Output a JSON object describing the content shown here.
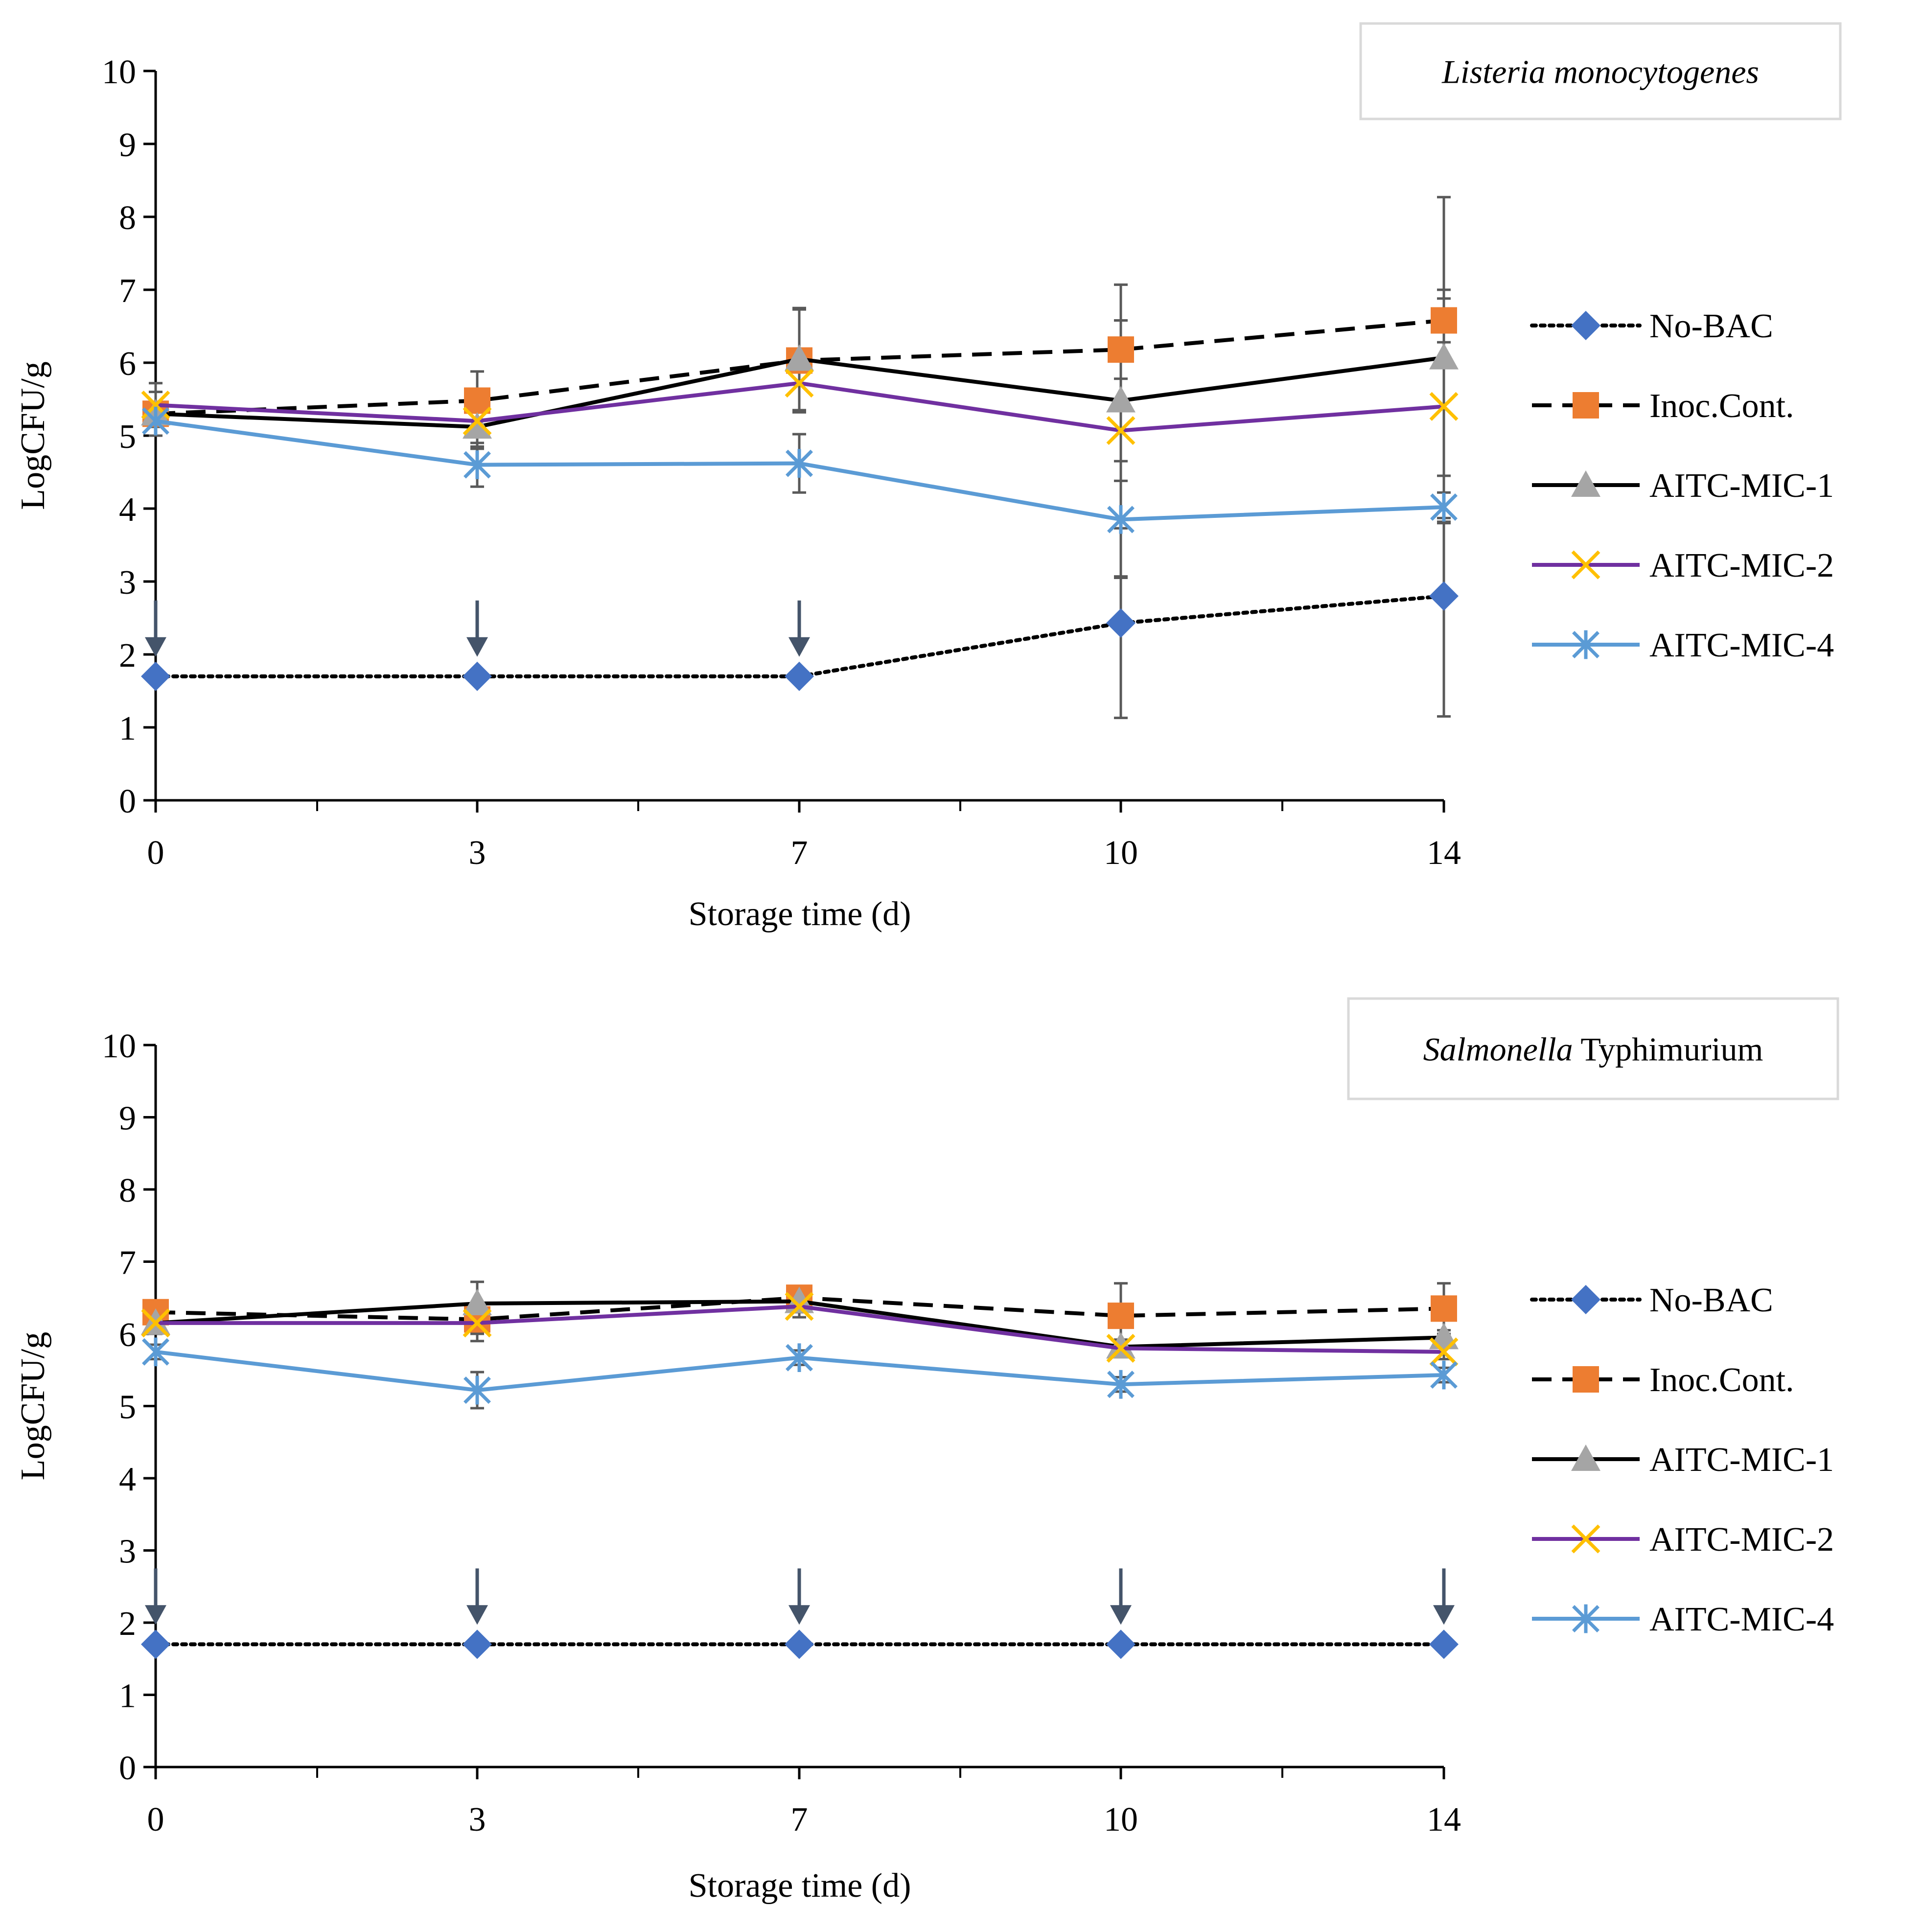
{
  "chart_data": [
    {
      "type": "line",
      "title": "Listeria monocytogenes",
      "title_parts": [
        {
          "text": "Listeria monocytogenes",
          "italic": true
        }
      ],
      "xlabel": "Storage time (d)",
      "ylabel": "LogCFU/g",
      "ylim": [
        0,
        10
      ],
      "yticks": [
        "0",
        "1",
        "2",
        "3",
        "4",
        "5",
        "6",
        "7",
        "8",
        "9",
        "10"
      ],
      "categories": [
        "0",
        "3",
        "7",
        "10",
        "14"
      ],
      "legend_position": "right",
      "series": [
        {
          "name": "No-BAC",
          "key": "nobac",
          "values": [
            1.7,
            1.7,
            1.7,
            2.43,
            2.8
          ],
          "errors": [
            null,
            null,
            null,
            1.3,
            1.65
          ],
          "below_detection": [
            true,
            true,
            true,
            false,
            false
          ]
        },
        {
          "name": "Inoc.Cont.",
          "key": "inoc",
          "values": [
            5.3,
            5.48,
            6.03,
            6.18,
            6.58
          ],
          "errors": [
            0.15,
            0.4,
            0.7,
            0.4,
            0.3
          ],
          "below_detection": [
            false,
            false,
            false,
            false,
            false
          ]
        },
        {
          "name": "AITC-MIC-1",
          "key": "mic1",
          "values": [
            5.3,
            5.12,
            6.05,
            5.48,
            6.07
          ],
          "errors": [
            0.3,
            0.3,
            0.7,
            1.1,
            2.2
          ],
          "below_detection": [
            false,
            false,
            false,
            false,
            false
          ]
        },
        {
          "name": "AITC-MIC-2",
          "key": "mic2",
          "values": [
            5.42,
            5.2,
            5.72,
            5.07,
            5.4
          ],
          "errors": [
            0.3,
            0.35,
            0.4,
            2.0,
            1.6
          ],
          "below_detection": [
            false,
            false,
            false,
            false,
            false
          ]
        },
        {
          "name": "AITC-MIC-4",
          "key": "mic4",
          "values": [
            5.2,
            4.6,
            4.62,
            3.85,
            4.02
          ],
          "errors": [
            0.2,
            0.3,
            0.4,
            0.8,
            0.2
          ],
          "below_detection": [
            false,
            false,
            false,
            false,
            false
          ]
        }
      ]
    },
    {
      "type": "line",
      "title": "Salmonella Typhimurium",
      "title_parts": [
        {
          "text": "Salmonella",
          "italic": true
        },
        {
          "text": " Typhimurium",
          "italic": false
        }
      ],
      "xlabel": "Storage time (d)",
      "ylabel": "LogCFU/g",
      "ylim": [
        0,
        10
      ],
      "yticks": [
        "0",
        "1",
        "2",
        "3",
        "4",
        "5",
        "6",
        "7",
        "8",
        "9",
        "10"
      ],
      "categories": [
        "0",
        "3",
        "7",
        "10",
        "14"
      ],
      "legend_position": "right",
      "series": [
        {
          "name": "No-BAC",
          "key": "nobac",
          "values": [
            1.7,
            1.7,
            1.7,
            1.7,
            1.7
          ],
          "errors": [
            null,
            null,
            null,
            null,
            null
          ],
          "below_detection": [
            true,
            true,
            true,
            true,
            true
          ]
        },
        {
          "name": "Inoc.Cont.",
          "key": "inoc",
          "values": [
            6.3,
            6.2,
            6.5,
            6.25,
            6.35
          ],
          "errors": [
            0.15,
            0.2,
            0.15,
            0.45,
            0.35
          ],
          "below_detection": [
            false,
            false,
            false,
            false,
            false
          ]
        },
        {
          "name": "AITC-MIC-1",
          "key": "mic1",
          "values": [
            6.15,
            6.42,
            6.45,
            5.82,
            5.95
          ],
          "errors": [
            0.15,
            0.3,
            0.15,
            0.1,
            0.1
          ],
          "below_detection": [
            false,
            false,
            false,
            false,
            false
          ]
        },
        {
          "name": "AITC-MIC-2",
          "key": "mic2",
          "values": [
            6.15,
            6.15,
            6.38,
            5.8,
            5.75
          ],
          "errors": [
            0.15,
            0.25,
            0.15,
            0.1,
            0.1
          ],
          "below_detection": [
            false,
            false,
            false,
            false,
            false
          ]
        },
        {
          "name": "AITC-MIC-4",
          "key": "mic4",
          "values": [
            5.75,
            5.22,
            5.67,
            5.3,
            5.43
          ],
          "errors": [
            0.1,
            0.25,
            0.1,
            0.1,
            0.1
          ],
          "below_detection": [
            false,
            false,
            false,
            false,
            false
          ]
        }
      ]
    }
  ],
  "styles": {
    "nobac": {
      "color": "#000000",
      "marker": "diamond",
      "marker_color": "#4472c4",
      "dash": "dotted"
    },
    "inoc": {
      "color": "#000000",
      "marker": "square",
      "marker_color": "#ed7d31",
      "dash": "dashed"
    },
    "mic1": {
      "color": "#000000",
      "marker": "triangle",
      "marker_color": "#a5a5a5",
      "dash": "solid"
    },
    "mic2": {
      "color": "#7030a0",
      "marker": "x",
      "marker_color": "#ffc000",
      "dash": "solid"
    },
    "mic4": {
      "color": "#5b9bd5",
      "marker": "star",
      "marker_color": "#5b9bd5",
      "dash": "solid"
    },
    "error_bar_color": "#595959",
    "arrow_color": "#44546a",
    "axis_color": "#000000"
  }
}
